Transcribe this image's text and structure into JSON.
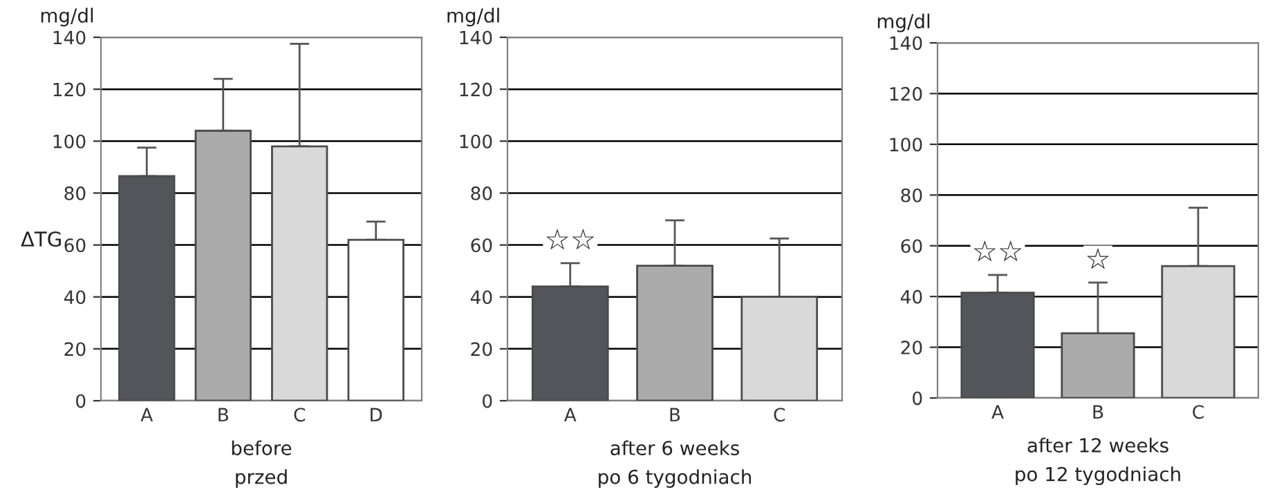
{
  "chart_data": [
    {
      "type": "bar",
      "categories": [
        "A",
        "B",
        "C",
        "D"
      ],
      "values": [
        86.5,
        104,
        98,
        62
      ],
      "colors": [
        "#54555a",
        "#ababab",
        "#d9d9d9",
        "#ffffff"
      ],
      "errors": [
        [
          86.5,
          97.5
        ],
        [
          104,
          124
        ],
        [
          98,
          137.5
        ],
        [
          62,
          69
        ]
      ],
      "ylim": [
        0,
        140
      ],
      "yticks": [
        0,
        20,
        40,
        60,
        80,
        100,
        120,
        140
      ],
      "grid": "y",
      "ylabel": "ΔTG",
      "xlabel": "before\nprzed",
      "annotations": [
        "mg/dl"
      ]
    },
    {
      "type": "bar",
      "categories": [
        "A",
        "B",
        "C"
      ],
      "values": [
        44,
        52,
        40
      ],
      "colors": [
        "#54555a",
        "#ababab",
        "#d9d9d9"
      ],
      "errors": [
        [
          44,
          53
        ],
        [
          52,
          69.5
        ],
        [
          40,
          62.5
        ]
      ],
      "ylim": [
        0,
        140
      ],
      "yticks": [
        0,
        20,
        40,
        60,
        80,
        100,
        120,
        140
      ],
      "grid": "y",
      "xlabel": "after 6 weeks\npo 6 tygodniach",
      "annotations": [
        "mg/dl",
        "☆☆"
      ]
    },
    {
      "type": "bar",
      "categories": [
        "A",
        "B",
        "C"
      ],
      "values": [
        41.5,
        25.5,
        52
      ],
      "colors": [
        "#54555a",
        "#ababab",
        "#d9d9d9"
      ],
      "errors": [
        [
          41.5,
          48.5
        ],
        [
          25.5,
          45.5
        ],
        [
          52,
          75
        ]
      ],
      "ylim": [
        0,
        140
      ],
      "yticks": [
        0,
        20,
        40,
        60,
        80,
        100,
        120,
        140
      ],
      "grid": "y",
      "xlabel": "after 12 weeks\npo 12 tygodniach",
      "annotations": [
        "mg/dl",
        "☆☆",
        "☆"
      ]
    }
  ]
}
